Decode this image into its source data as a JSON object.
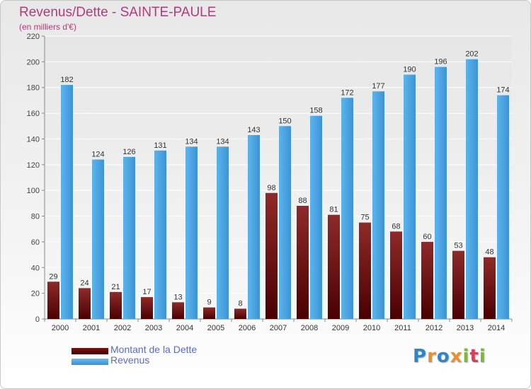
{
  "title": "Revenus/Dette - SAINTE-PAULE",
  "subtitle": "(en milliers d'€)",
  "colors": {
    "debt": "#8b1a1a",
    "debt_dark": "#4a0000",
    "revenue": "#55aee8",
    "revenue_dark": "#2a7fc4",
    "title": "#b53a7a",
    "legend_text": "#5b6bc7"
  },
  "chart_data": {
    "type": "bar",
    "title": "Revenus/Dette - SAINTE-PAULE",
    "subtitle": "(en milliers d'€)",
    "categories": [
      "2000",
      "2001",
      "2002",
      "2003",
      "2004",
      "2005",
      "2006",
      "2007",
      "2008",
      "2009",
      "2010",
      "2011",
      "2012",
      "2013",
      "2014"
    ],
    "series": [
      {
        "name": "Montant de la Dette",
        "values": [
          29,
          24,
          21,
          17,
          13,
          9,
          8,
          98,
          88,
          81,
          75,
          68,
          60,
          53,
          48
        ]
      },
      {
        "name": "Revenus",
        "values": [
          182,
          124,
          126,
          131,
          134,
          134,
          143,
          150,
          158,
          172,
          177,
          190,
          196,
          202,
          174
        ]
      }
    ],
    "ylim": [
      0,
      220
    ],
    "yticks": [
      0,
      20,
      40,
      60,
      80,
      100,
      120,
      140,
      160,
      180,
      200,
      220
    ],
    "grid": true,
    "legend_position": "bottom-left"
  },
  "legend": [
    {
      "label": "Montant de la Dette",
      "color": "#6a0f0f"
    },
    {
      "label": "Revenus",
      "color": "#4aa3e6"
    }
  ],
  "logo": {
    "text": "Proxiti",
    "letters": [
      {
        "ch": "P",
        "color": "#2e86c8"
      },
      {
        "ch": "r",
        "color": "#e8912c"
      },
      {
        "ch": "o",
        "color": "#2e86c8"
      },
      {
        "ch": "x",
        "color": "#e8912c"
      },
      {
        "ch": "i",
        "color": "#7cb83a"
      },
      {
        "ch": "t",
        "color": "#d6405a"
      },
      {
        "ch": "i",
        "color": "#7cb83a"
      }
    ]
  }
}
